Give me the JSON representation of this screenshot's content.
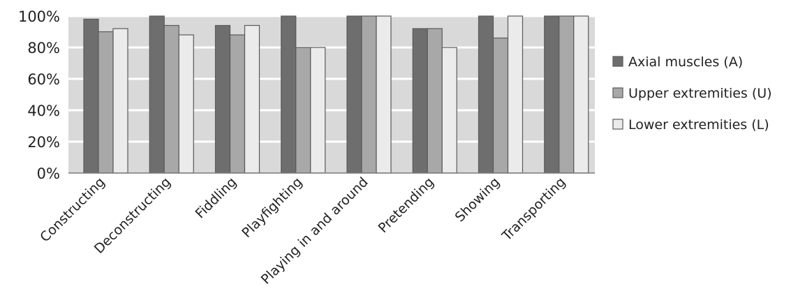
{
  "chart_data": {
    "type": "bar",
    "title": "",
    "xlabel": "",
    "ylabel": "",
    "ylim": [
      0,
      100
    ],
    "y_tick_labels": [
      "0%",
      "20%",
      "40%",
      "60%",
      "80%",
      "100%"
    ],
    "categories": [
      "Constructing",
      "Deconstructing",
      "Fiddling",
      "Playfighting",
      "Playing in and around",
      "Pretending",
      "Showing",
      "Transporting"
    ],
    "series": [
      {
        "name": "Axial muscles (A)",
        "color": "#6e6e6e",
        "values": [
          98,
          100,
          94,
          100,
          100,
          92,
          100,
          100
        ]
      },
      {
        "name": "Upper extremities (U)",
        "color": "#a8a8a8",
        "values": [
          90,
          94,
          88,
          80,
          100,
          92,
          86,
          100
        ]
      },
      {
        "name": "Lower extremities (L)",
        "color": "#ebebeb",
        "values": [
          92,
          88,
          94,
          80,
          100,
          80,
          100,
          100
        ]
      }
    ],
    "grid": true,
    "plot_background": "#d9d9d9",
    "legend_position": "right"
  }
}
